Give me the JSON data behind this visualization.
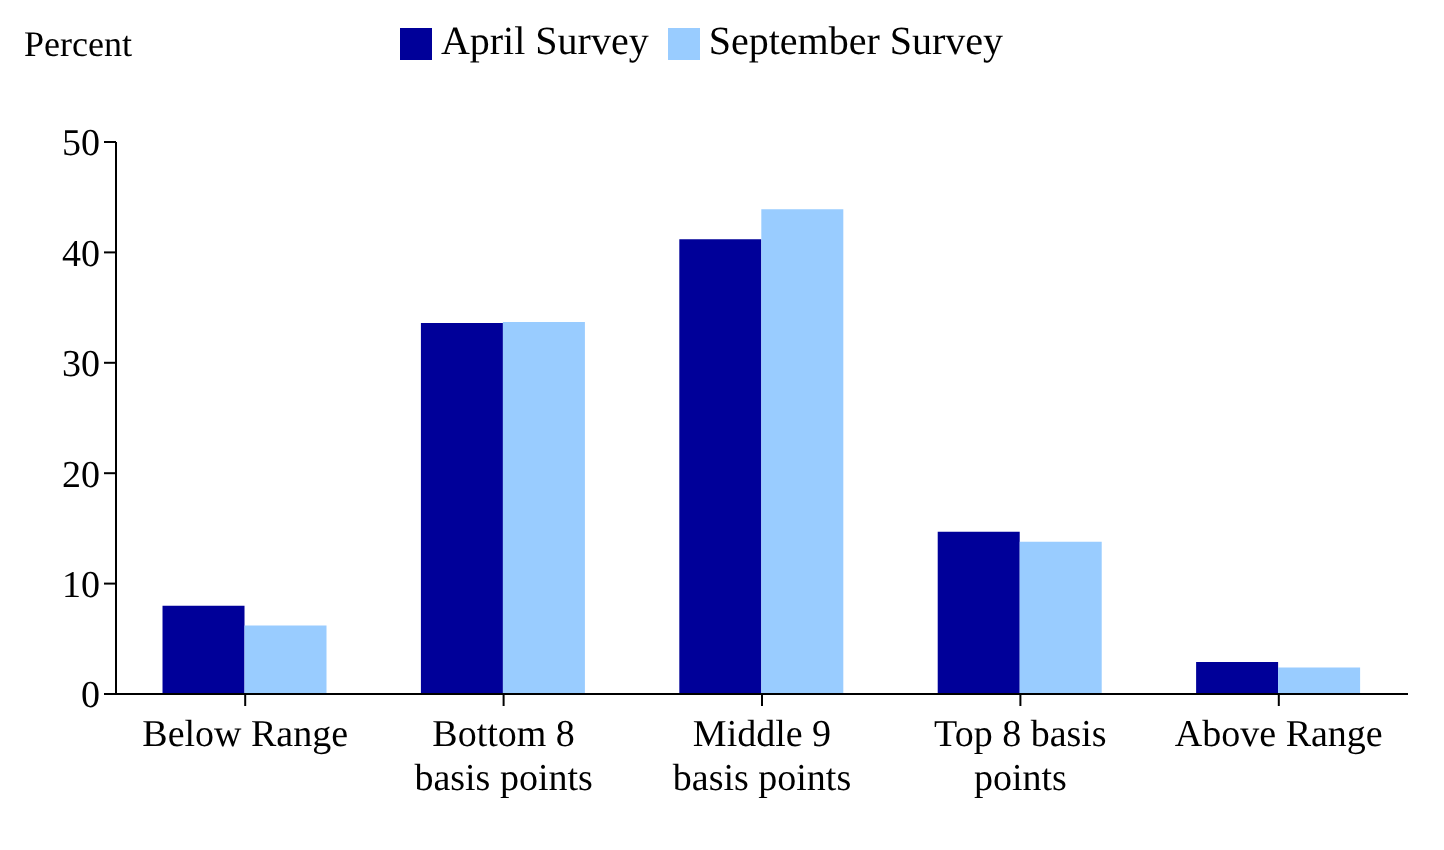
{
  "chart_data": {
    "type": "bar",
    "ylabel": "Percent",
    "categories": [
      "Below Range",
      "Bottom 8 basis points",
      "Middle 9 basis points",
      "Top 8 basis points",
      "Above Range"
    ],
    "series": [
      {
        "name": "April Survey",
        "color": "#000099",
        "values": [
          8,
          33.6,
          41.2,
          14.7,
          2.9
        ]
      },
      {
        "name": "September Survey",
        "color": "#99ccff",
        "values": [
          6.2,
          33.7,
          43.9,
          13.8,
          2.4
        ]
      }
    ],
    "ylim": [
      0,
      50
    ],
    "yticks": [
      0,
      10,
      20,
      30,
      40,
      50
    ],
    "grid": false,
    "legend": "top"
  }
}
